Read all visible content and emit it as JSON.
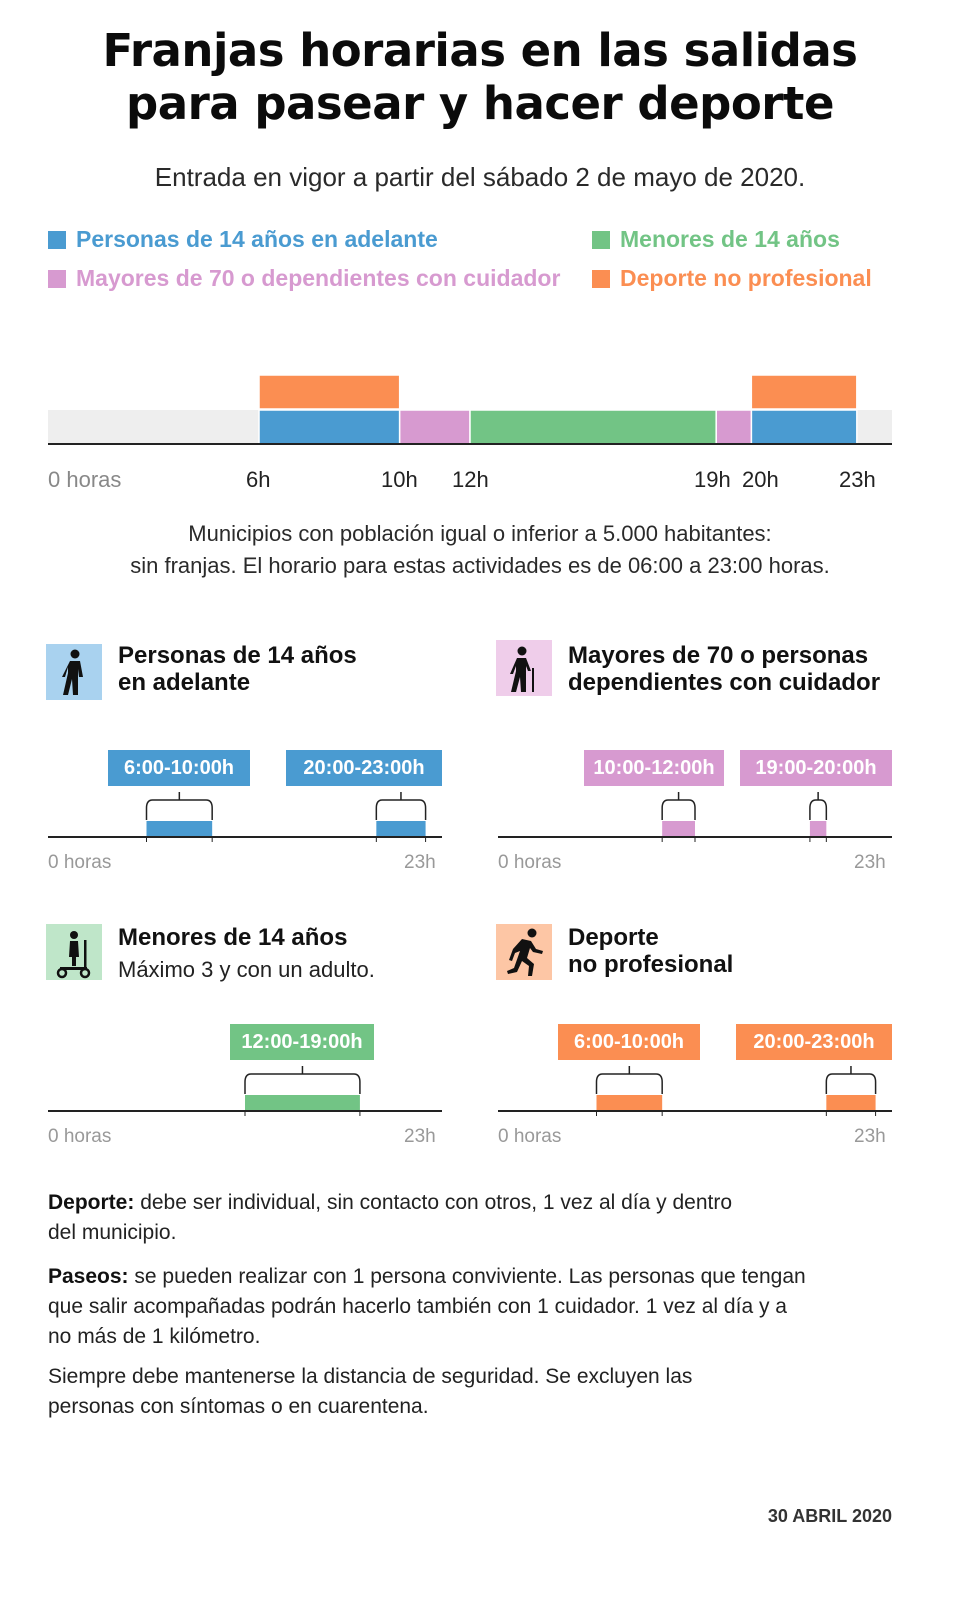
{
  "title_line1": "Franjas horarias en las salidas",
  "title_line2": "para pasear y hacer deporte",
  "subtitle": "Entrada en vigor a partir del sábado 2 de mayo de 2020.",
  "colors": {
    "blue": "#4a9bd1",
    "pink": "#d79ad0",
    "green": "#72c485",
    "orange": "#fb8e52",
    "track": "#eeeeee",
    "axis": "#222222"
  },
  "legend": [
    {
      "label": "Personas de 14 años en adelante",
      "color": "#4a9bd1"
    },
    {
      "label": "Menores de 14 años",
      "color": "#72c485"
    },
    {
      "label": "Mayores de 70 o dependientes con cuidador",
      "color": "#d79ad0"
    },
    {
      "label": "Deporte no profesional",
      "color": "#fb8e52"
    }
  ],
  "chart_data": [
    {
      "type": "bar",
      "orientation": "horizontal-timeline",
      "x_unit": "hours",
      "xlim": [
        0,
        24
      ],
      "tick_labels": [
        "0 horas",
        "6h",
        "10h",
        "12h",
        "19h",
        "20h",
        "23h"
      ],
      "tick_values": [
        0,
        6,
        10,
        12,
        19,
        20,
        23
      ],
      "series": [
        {
          "name": "Personas de 14 años en adelante",
          "color": "#4a9bd1",
          "row": 0,
          "intervals": [
            [
              6,
              10
            ],
            [
              20,
              23
            ]
          ]
        },
        {
          "name": "Mayores de 70 o dependientes con cuidador",
          "color": "#d79ad0",
          "row": 0,
          "intervals": [
            [
              10,
              12
            ],
            [
              19,
              20
            ]
          ]
        },
        {
          "name": "Menores de 14 años",
          "color": "#72c485",
          "row": 0,
          "intervals": [
            [
              12,
              19
            ]
          ]
        },
        {
          "name": "Deporte no profesional",
          "color": "#fb8e52",
          "row": 1,
          "intervals": [
            [
              6,
              10
            ],
            [
              20,
              23
            ]
          ]
        }
      ]
    }
  ],
  "note_line1": "Municipios con población igual o inferior a 5.000 habitantes:",
  "note_line2": "sin franjas. El horario para estas actividades es de 06:00 a 23:00 horas.",
  "panels": [
    {
      "id": "adultos",
      "icon": "walking-person-icon",
      "title1": "Personas de 14 años",
      "title2": "en adelante",
      "subtitle": "",
      "color": "#4a9bd1",
      "iconbg": "#a9d2ef",
      "badges": [
        "6:00-10:00h",
        "20:00-23:00h"
      ],
      "intervals": [
        [
          6,
          10
        ],
        [
          20,
          23
        ]
      ],
      "axis_start": "0 horas",
      "axis_end": "23h"
    },
    {
      "id": "mayores",
      "icon": "elderly-person-cane-icon",
      "title1": "Mayores de 70 o personas",
      "title2": "dependientes con cuidador",
      "subtitle": "",
      "color": "#d79ad0",
      "iconbg": "#efcdea",
      "badges": [
        "10:00-12:00h",
        "19:00-20:00h"
      ],
      "intervals": [
        [
          10,
          12
        ],
        [
          19,
          20
        ]
      ],
      "axis_start": "0 horas",
      "axis_end": "23h"
    },
    {
      "id": "menores",
      "icon": "child-scooter-icon",
      "title1": "Menores de 14 años",
      "title2": "",
      "subtitle": "Máximo 3 y con un adulto.",
      "color": "#72c485",
      "iconbg": "#bfe6c9",
      "badges": [
        "12:00-19:00h"
      ],
      "intervals": [
        [
          12,
          19
        ]
      ],
      "axis_start": "0 horas",
      "axis_end": "23h"
    },
    {
      "id": "deporte",
      "icon": "running-person-icon",
      "title1": "Deporte",
      "title2": "no profesional",
      "subtitle": "",
      "color": "#fb8e52",
      "iconbg": "#fdc6a5",
      "badges": [
        "6:00-10:00h",
        "20:00-23:00h"
      ],
      "intervals": [
        [
          6,
          10
        ],
        [
          20,
          23
        ]
      ],
      "axis_start": "0 horas",
      "axis_end": "23h"
    }
  ],
  "para_deporte_label": "Deporte:",
  "para_deporte_line1": "debe ser individual, sin contacto con otros, 1 vez al día y dentro",
  "para_deporte_line2": "del municipio.",
  "para_paseos_label": "Paseos:",
  "para_paseos_line1": "se pueden realizar con 1 persona conviviente. Las personas que tengan",
  "para_paseos_line2": "que salir acompañadas podrán hacerlo también con 1 cuidador. 1 vez al día y a",
  "para_paseos_line3": "no más de 1 kilómetro.",
  "para_siempre_line1": "Siempre debe mantenerse la distancia de seguridad. Se excluyen las",
  "para_siempre_line2": "personas con síntomas o en cuarentena.",
  "date": "30 ABRIL 2020"
}
